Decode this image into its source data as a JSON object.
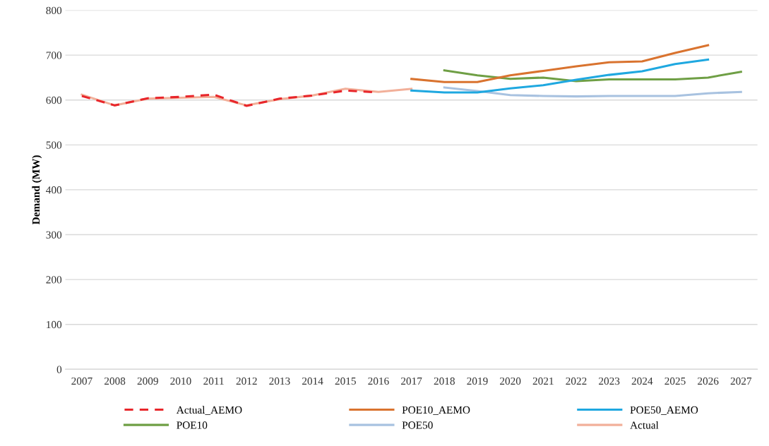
{
  "chart_data": {
    "type": "line",
    "ylabel": "Demand (MW)",
    "categories": [
      "2007",
      "2008",
      "2009",
      "2010",
      "2011",
      "2012",
      "2013",
      "2014",
      "2015",
      "2016",
      "2017",
      "2018",
      "2019",
      "2020",
      "2021",
      "2022",
      "2023",
      "2024",
      "2025",
      "2026",
      "2027"
    ],
    "ylim": [
      0,
      800
    ],
    "yticks": [
      0,
      100,
      200,
      300,
      400,
      500,
      600,
      700,
      800
    ],
    "grid": "y",
    "legend": "bottom",
    "series": [
      {
        "name": "Actual_AEMO",
        "color": "#e8262b",
        "line_style": "dashed",
        "values": [
          609,
          588,
          604,
          607,
          612,
          587,
          603,
          610,
          621,
          617,
          null,
          null,
          null,
          null,
          null,
          null,
          null,
          null,
          null,
          null,
          null
        ]
      },
      {
        "name": "POE10_AEMO",
        "color": "#d9732f",
        "values": [
          null,
          null,
          null,
          null,
          null,
          null,
          null,
          null,
          null,
          null,
          647,
          640,
          640,
          655,
          665,
          675,
          684,
          686,
          705,
          722,
          null
        ]
      },
      {
        "name": "POE50_AEMO",
        "color": "#1fa8e0",
        "values": [
          null,
          null,
          null,
          null,
          null,
          null,
          null,
          null,
          null,
          null,
          621,
          617,
          617,
          626,
          633,
          645,
          656,
          664,
          680,
          690,
          null
        ]
      },
      {
        "name": "POE10",
        "color": "#6f9f45",
        "values": [
          null,
          null,
          null,
          null,
          null,
          null,
          null,
          null,
          null,
          null,
          null,
          666,
          655,
          647,
          650,
          642,
          646,
          646,
          646,
          650,
          663
        ]
      },
      {
        "name": "POE50",
        "color": "#a8c2e0",
        "values": [
          null,
          null,
          null,
          null,
          null,
          null,
          null,
          null,
          null,
          null,
          null,
          628,
          620,
          611,
          609,
          608,
          609,
          609,
          609,
          615,
          618
        ]
      },
      {
        "name": "Actual",
        "color": "#f2b09a",
        "values": [
          612,
          588,
          603,
          605,
          607,
          588,
          602,
          610,
          625,
          618,
          625,
          null,
          null,
          null,
          null,
          null,
          null,
          null,
          null,
          null,
          null
        ]
      }
    ]
  }
}
